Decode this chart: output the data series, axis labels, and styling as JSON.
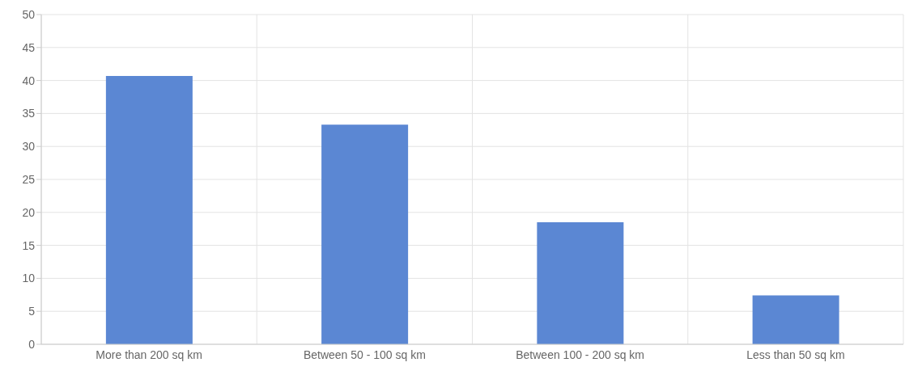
{
  "chart_data": {
    "type": "bar",
    "categories": [
      "More than 200 sq km",
      "Between 50 - 100 sq km",
      "Between 100 - 200 sq km",
      "Less than 50 sq km"
    ],
    "values": [
      40.7,
      33.3,
      18.5,
      7.4
    ],
    "color": "#5b87d3",
    "ylim": [
      0,
      50
    ],
    "yticks": [
      0,
      5,
      10,
      15,
      20,
      25,
      30,
      35,
      40,
      45,
      50
    ],
    "grid": true
  }
}
